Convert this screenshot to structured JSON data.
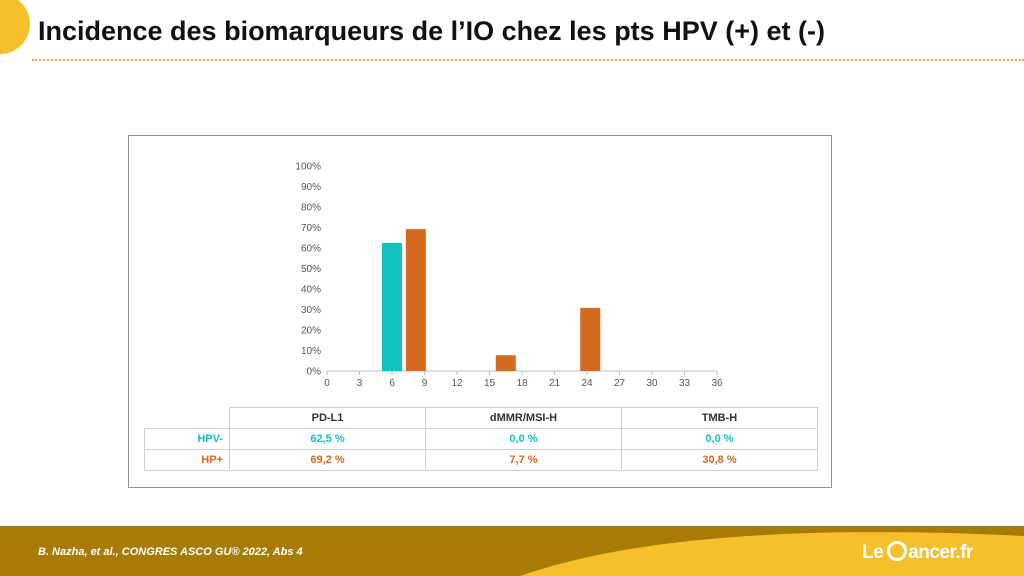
{
  "slide": {
    "title": "Incidence des biomarqueurs de l’IO chez les pts HPV (+) et (-)",
    "citation": "B. Nazha, et al., CONGRES ASCO GU® 2022, Abs 4",
    "logo_pre": "Le",
    "logo_post": "ancer.fr"
  },
  "colors": {
    "accent": "#f5c02b",
    "footer": "#a87a06",
    "hpv_neg": "#13c1c1",
    "hpv_pos": "#d46a20"
  },
  "chart_data": {
    "type": "bar",
    "x_ticks": [
      "0",
      "3",
      "6",
      "9",
      "12",
      "15",
      "18",
      "21",
      "24",
      "27",
      "30",
      "33",
      "36"
    ],
    "y_ticks": [
      "0%",
      "10%",
      "20%",
      "30%",
      "40%",
      "50%",
      "60%",
      "70%",
      "80%",
      "90%",
      "100%"
    ],
    "xlim": [
      0,
      36
    ],
    "ylim": [
      0,
      100
    ],
    "categories": [
      "PD-L1",
      "dMMR/MSI-H",
      "TMB-H"
    ],
    "series": [
      {
        "name": "HPV-",
        "values": [
          62.5,
          0.0,
          0.0
        ],
        "x": [
          6,
          16.5,
          24
        ],
        "color": "#13c1c1"
      },
      {
        "name": "HP+",
        "values": [
          69.2,
          7.7,
          30.8
        ],
        "x": [
          8.2,
          16.5,
          24.3
        ],
        "color": "#d46a20"
      }
    ]
  },
  "table": {
    "header": [
      "PD-L1",
      "dMMR/MSI-H",
      "TMB-H"
    ],
    "rows": [
      {
        "label": "HPV-",
        "cells": [
          "62,5 %",
          "0,0 %",
          "0,0 %"
        ]
      },
      {
        "label": "HP+",
        "cells": [
          "69,2 %",
          "7,7 %",
          "30,8 %"
        ]
      }
    ]
  }
}
